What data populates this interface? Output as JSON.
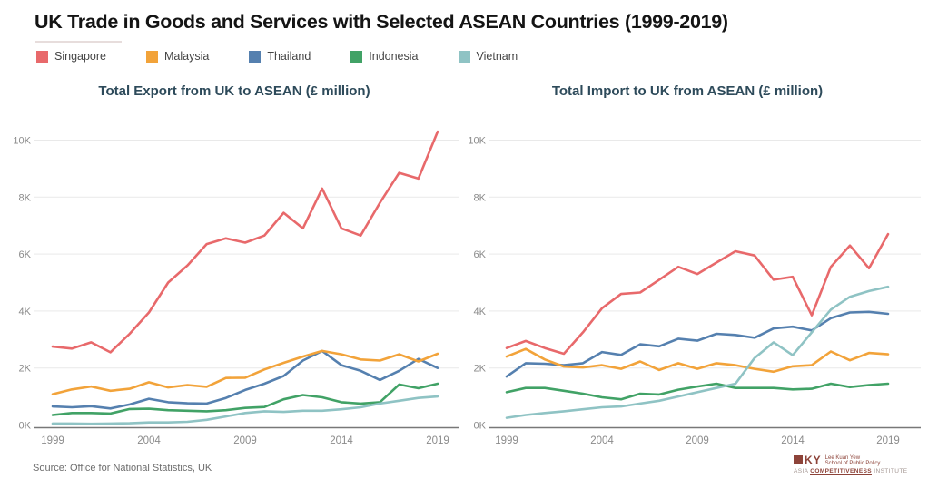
{
  "title": "UK Trade in Goods and Services with Selected ASEAN Countries (1999-2019)",
  "source": "Source: Office for National Statistics, UK",
  "colors": {
    "singapore": "#E8696B",
    "malaysia": "#F2A33A",
    "thailand": "#5580AF",
    "indonesia": "#41A266",
    "vietnam": "#8FC3C4",
    "gridline": "#e9e9e9",
    "axis_line": "#787878",
    "tick_label": "#8b8b8b"
  },
  "legend": [
    {
      "label": "Singapore",
      "color": "#E8696B"
    },
    {
      "label": "Malaysia",
      "color": "#F2A33A"
    },
    {
      "label": "Thailand",
      "color": "#5580AF"
    },
    {
      "label": "Indonesia",
      "color": "#41A266"
    },
    {
      "label": "Vietnam",
      "color": "#8FC3C4"
    }
  ],
  "logo": {
    "mark": "KY",
    "school_line1": "Lee Kuan Yew",
    "school_line2": "School of Public Policy",
    "inst_pre": "ASIA",
    "inst_mid": "COMPETITIVENESS",
    "inst_post": "INSTITUTE"
  },
  "chart_data": [
    {
      "type": "line",
      "title": "Total Export from UK to ASEAN (£ million)",
      "xlabel": "",
      "ylabel": "",
      "grid": true,
      "legend_position": "top-left-shared",
      "ylim": [
        0,
        10000
      ],
      "y_ticks": [
        0,
        2000,
        4000,
        6000,
        8000,
        10000
      ],
      "y_tick_labels": [
        "0K",
        "2K",
        "4K",
        "6K",
        "8K",
        "10K"
      ],
      "x": [
        1999,
        2000,
        2001,
        2002,
        2003,
        2004,
        2005,
        2006,
        2007,
        2008,
        2009,
        2010,
        2011,
        2012,
        2013,
        2014,
        2015,
        2016,
        2017,
        2018,
        2019
      ],
      "x_tick_years": [
        1999,
        2004,
        2009,
        2014,
        2019
      ],
      "series": [
        {
          "name": "Singapore",
          "values": [
            2750,
            2680,
            2900,
            2550,
            3200,
            3950,
            5000,
            5600,
            6350,
            6550,
            6400,
            6650,
            7450,
            6900,
            8300,
            6900,
            6650,
            7800,
            8850,
            8650,
            10300
          ]
        },
        {
          "name": "Malaysia",
          "values": [
            1080,
            1250,
            1350,
            1200,
            1270,
            1500,
            1320,
            1400,
            1340,
            1650,
            1660,
            1950,
            2180,
            2400,
            2600,
            2480,
            2300,
            2260,
            2480,
            2230,
            2500
          ]
        },
        {
          "name": "Thailand",
          "values": [
            650,
            620,
            660,
            580,
            720,
            920,
            800,
            760,
            750,
            950,
            1230,
            1450,
            1720,
            2260,
            2600,
            2100,
            1900,
            1580,
            1900,
            2320,
            2000
          ]
        },
        {
          "name": "Indonesia",
          "values": [
            350,
            420,
            420,
            400,
            560,
            570,
            520,
            500,
            480,
            520,
            600,
            630,
            900,
            1050,
            970,
            800,
            750,
            800,
            1420,
            1290,
            1450
          ]
        },
        {
          "name": "Vietnam",
          "values": [
            50,
            50,
            40,
            50,
            60,
            90,
            90,
            110,
            180,
            300,
            420,
            480,
            460,
            500,
            500,
            550,
            620,
            750,
            850,
            950,
            1000
          ]
        }
      ]
    },
    {
      "type": "line",
      "title": "Total Import to UK from ASEAN (£ million)",
      "xlabel": "",
      "ylabel": "",
      "grid": true,
      "legend_position": "top-left-shared",
      "ylim": [
        0,
        10000
      ],
      "y_ticks": [
        0,
        2000,
        4000,
        6000,
        8000,
        10000
      ],
      "y_tick_labels": [
        "0K",
        "2K",
        "4K",
        "6K",
        "8K",
        "10K"
      ],
      "x": [
        1999,
        2000,
        2001,
        2002,
        2003,
        2004,
        2005,
        2006,
        2007,
        2008,
        2009,
        2010,
        2011,
        2012,
        2013,
        2014,
        2015,
        2016,
        2017,
        2018,
        2019
      ],
      "x_tick_years": [
        1999,
        2004,
        2009,
        2014,
        2019
      ],
      "series": [
        {
          "name": "Singapore",
          "values": [
            2700,
            2950,
            2700,
            2500,
            3250,
            4100,
            4600,
            4650,
            5100,
            5550,
            5300,
            5700,
            6100,
            5950,
            5100,
            5200,
            3850,
            5550,
            6300,
            5500,
            6700
          ]
        },
        {
          "name": "Malaysia",
          "values": [
            2400,
            2670,
            2300,
            2050,
            2020,
            2100,
            1970,
            2230,
            1930,
            2170,
            1970,
            2170,
            2100,
            1970,
            1870,
            2060,
            2100,
            2580,
            2270,
            2530,
            2480
          ]
        },
        {
          "name": "Thailand",
          "values": [
            1700,
            2170,
            2150,
            2100,
            2170,
            2560,
            2460,
            2830,
            2760,
            3030,
            2960,
            3200,
            3160,
            3060,
            3390,
            3450,
            3320,
            3750,
            3950,
            3970,
            3900
          ]
        },
        {
          "name": "Indonesia",
          "values": [
            1150,
            1300,
            1300,
            1200,
            1100,
            970,
            900,
            1100,
            1070,
            1240,
            1350,
            1450,
            1300,
            1300,
            1300,
            1250,
            1270,
            1450,
            1330,
            1400,
            1450
          ]
        },
        {
          "name": "Vietnam",
          "values": [
            250,
            350,
            420,
            480,
            550,
            620,
            650,
            750,
            850,
            1000,
            1150,
            1300,
            1450,
            2350,
            2900,
            2450,
            3250,
            4050,
            4500,
            4700,
            4850
          ]
        }
      ]
    }
  ]
}
